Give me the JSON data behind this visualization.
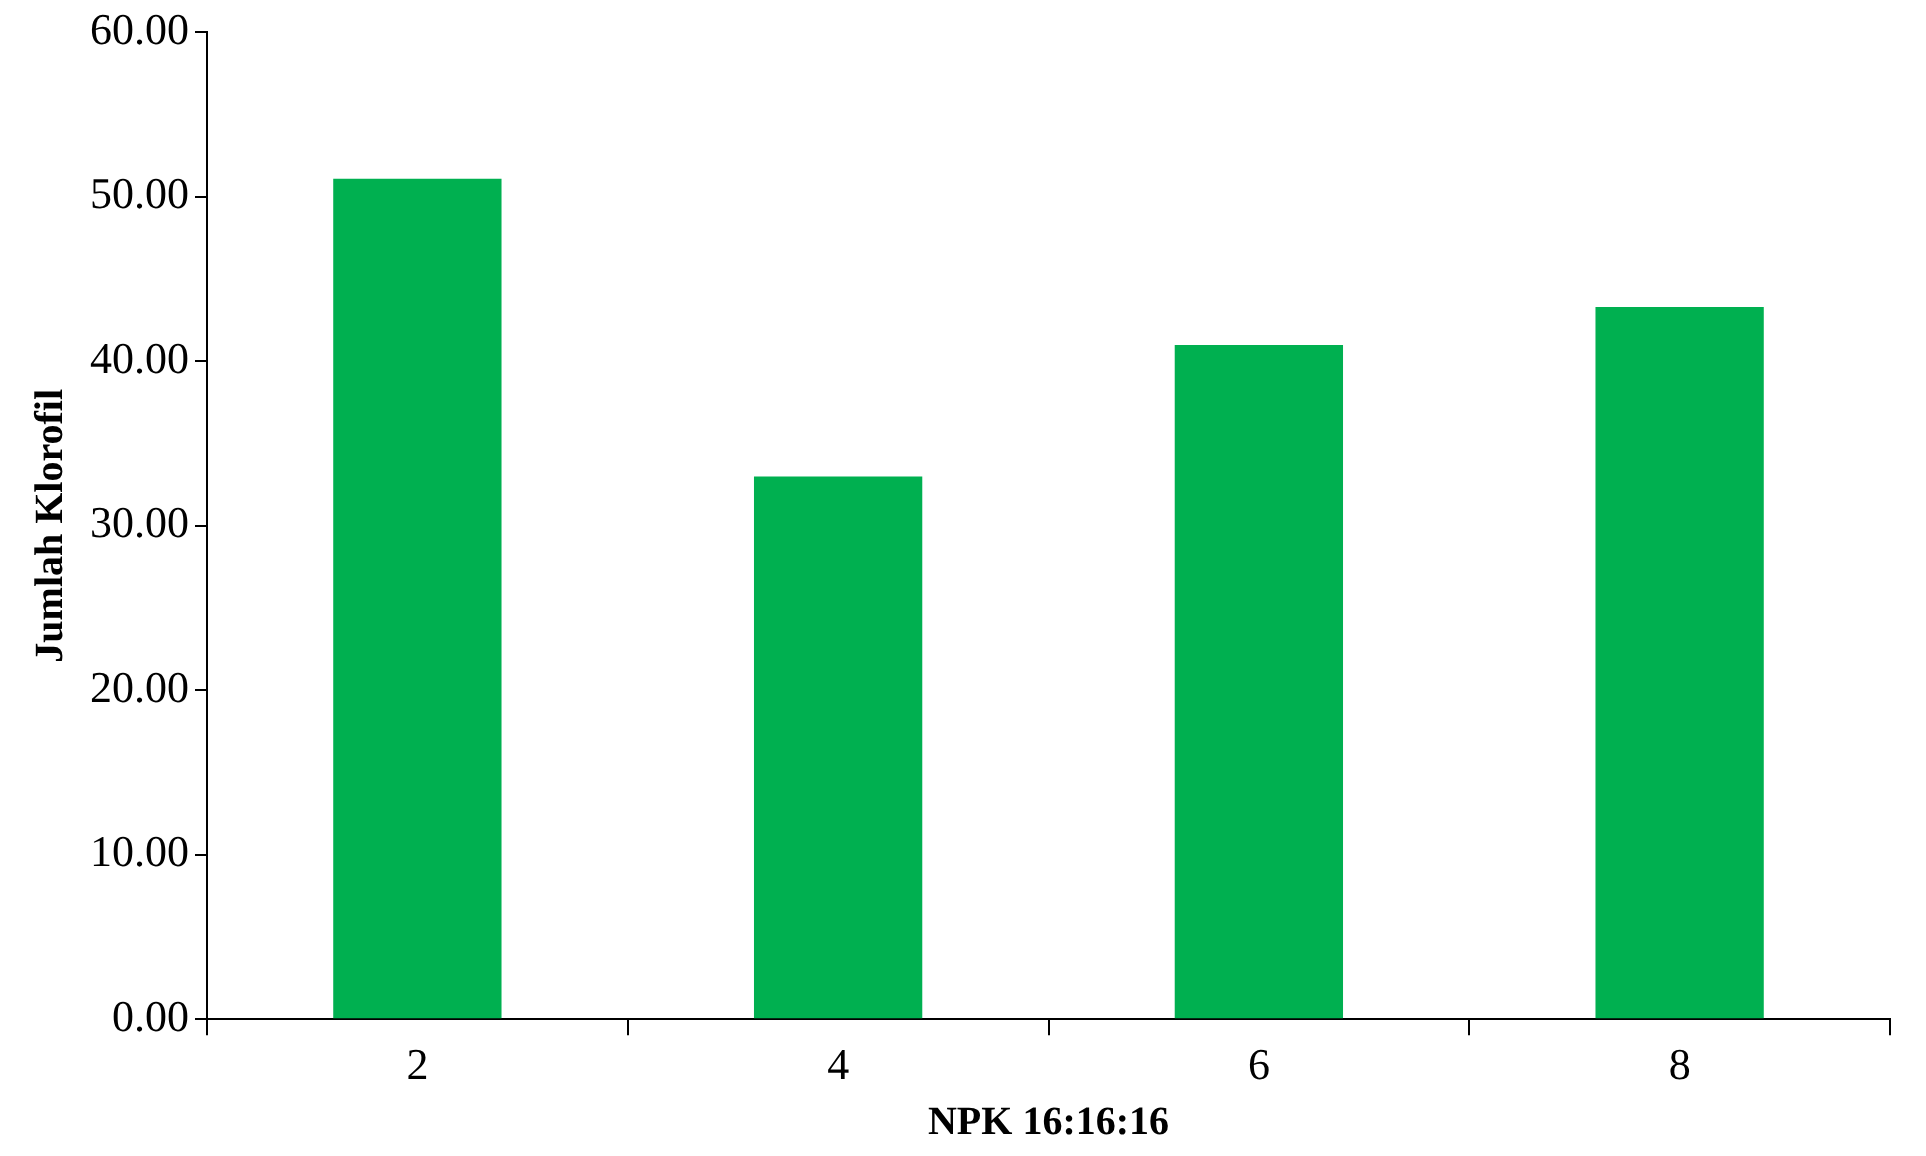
{
  "chart_data": {
    "type": "bar",
    "xlabel": "NPK 16:16:16",
    "ylabel": "Jumlah Klorofil",
    "categories": [
      "2",
      "4",
      "6",
      "8"
    ],
    "values": [
      51.1,
      33.0,
      41.0,
      43.3
    ],
    "color": "#00b050",
    "ylim": [
      0,
      60
    ],
    "yticks": [
      {
        "value": 0,
        "label": "0.00"
      },
      {
        "value": 10,
        "label": "10.00"
      },
      {
        "value": 20,
        "label": "20.00"
      },
      {
        "value": 30,
        "label": "30.00"
      },
      {
        "value": 40,
        "label": "40.00"
      },
      {
        "value": 50,
        "label": "50.00"
      },
      {
        "value": 60,
        "label": "60.00"
      }
    ],
    "grid": false,
    "legend": false
  }
}
